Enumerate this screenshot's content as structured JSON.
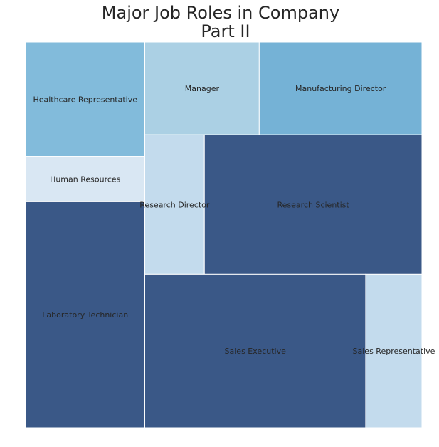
{
  "chart_data": {
    "type": "treemap",
    "title_lines": [
      "Major Job Roles in Company",
      "Part II"
    ],
    "items": [
      {
        "label": "Healthcare Representative",
        "value": 131,
        "color": "#82bbdb"
      },
      {
        "label": "Human Resources",
        "value": 52,
        "color": "#d9e7f3"
      },
      {
        "label": "Laboratory Technician",
        "value": 259,
        "color": "#3a5887"
      },
      {
        "label": "Manager",
        "value": 102,
        "color": "#abd0e4"
      },
      {
        "label": "Manufacturing Director",
        "value": 145,
        "color": "#75b2d6"
      },
      {
        "label": "Research Director",
        "value": 80,
        "color": "#c3dbed"
      },
      {
        "label": "Research Scientist",
        "value": 292,
        "color": "#3a5887"
      },
      {
        "label": "Sales Executive",
        "value": 326,
        "color": "#3a5887"
      },
      {
        "label": "Sales Representative",
        "value": 83,
        "color": "#c3dbed"
      }
    ]
  }
}
